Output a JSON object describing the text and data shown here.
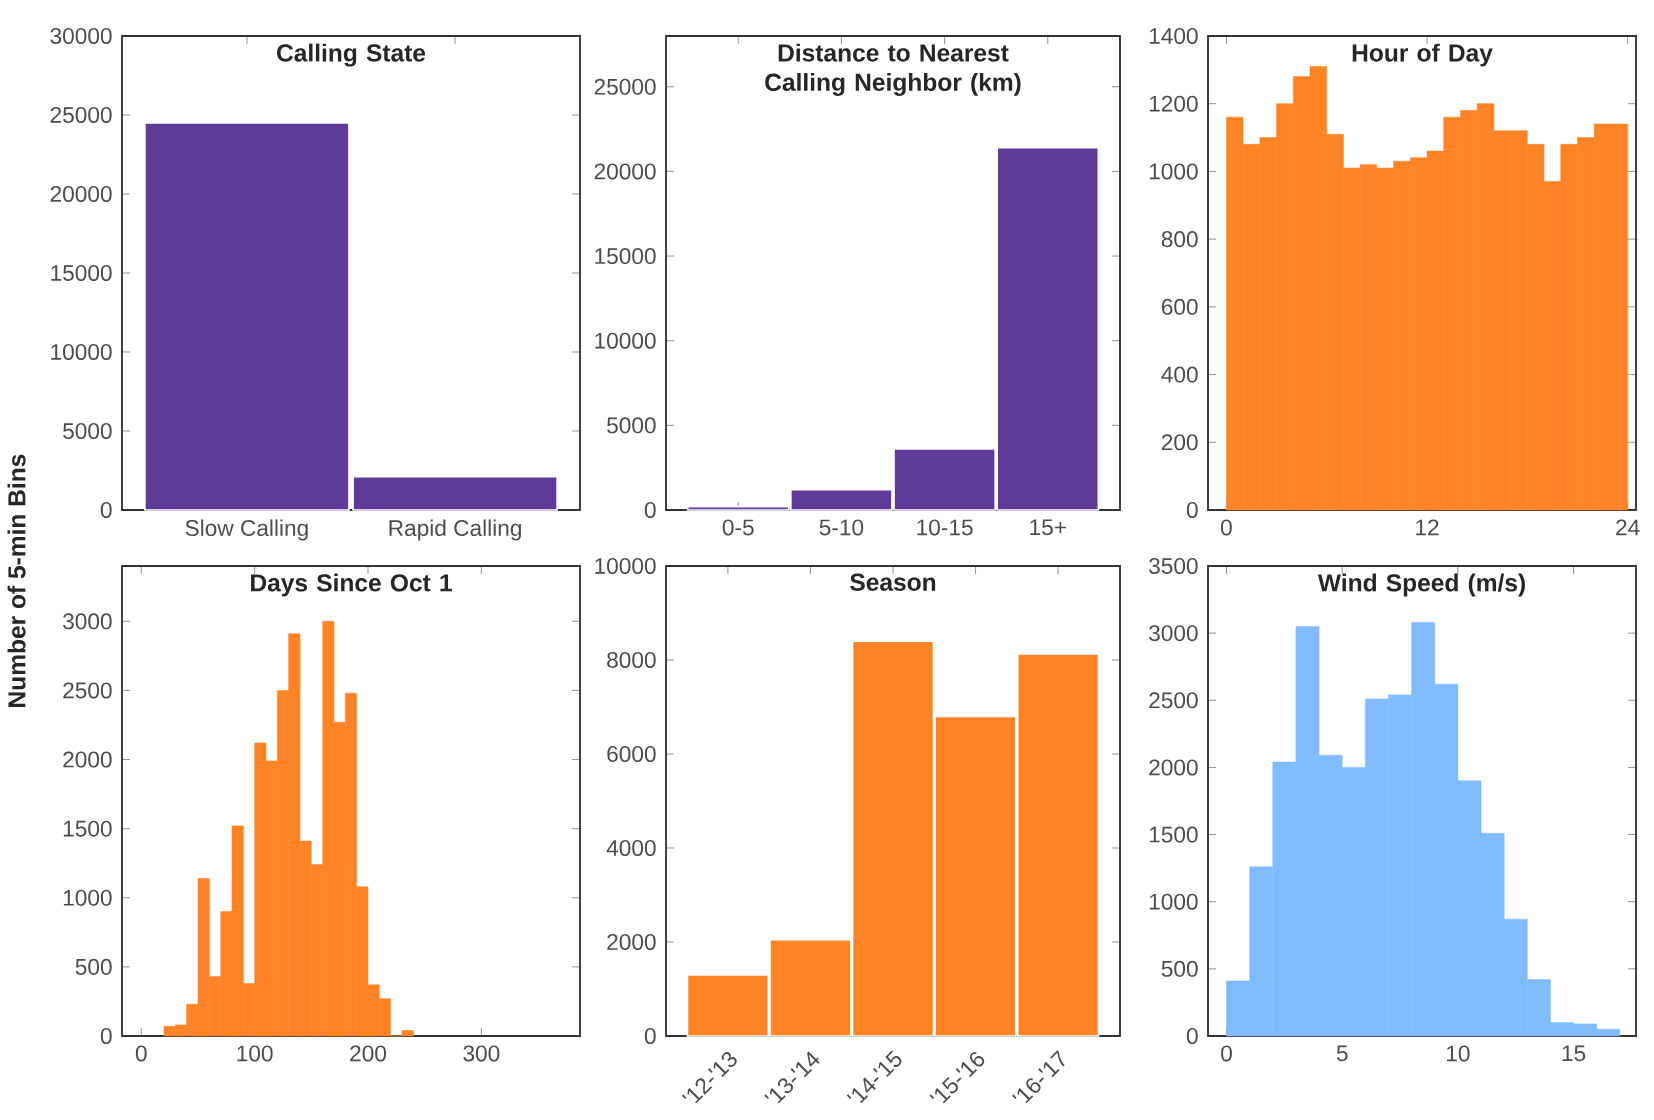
{
  "chart_data": [
    {
      "type": "bar",
      "title": "Calling State",
      "ylabel": "Number of 5-min Bins",
      "categories": [
        "Slow Calling",
        "Rapid Calling"
      ],
      "values": [
        24500,
        2100
      ],
      "color": "#5e3a99",
      "ylim": [
        0,
        30000
      ],
      "yticks": [
        0,
        5000,
        10000,
        15000,
        20000,
        25000,
        30000
      ]
    },
    {
      "type": "bar",
      "title": "Distance to Nearest Calling Neighbor (km)",
      "categories": [
        "0-5",
        "5-10",
        "10-15",
        "15+"
      ],
      "values": [
        200,
        1200,
        3600,
        21400
      ],
      "color": "#5e3a99",
      "ylim": [
        0,
        28000
      ],
      "yticks": [
        0,
        5000,
        10000,
        15000,
        20000,
        25000
      ]
    },
    {
      "type": "histogram",
      "title": "Hour of Day",
      "bins": [
        0,
        1,
        2,
        3,
        4,
        5,
        6,
        7,
        8,
        9,
        10,
        11,
        12,
        13,
        14,
        15,
        16,
        17,
        18,
        19,
        20,
        21,
        22,
        23,
        24
      ],
      "values": [
        1160,
        1080,
        1100,
        1200,
        1280,
        1310,
        1110,
        1010,
        1020,
        1010,
        1030,
        1040,
        1060,
        1160,
        1180,
        1200,
        1120,
        1120,
        1080,
        970,
        1080,
        1100,
        1140,
        1140
      ],
      "color": "#ff8426",
      "xlim": [
        -1.1,
        24.5
      ],
      "ylim": [
        0,
        1400
      ],
      "xticks": [
        0,
        12,
        24
      ],
      "yticks": [
        0,
        200,
        400,
        600,
        800,
        1000,
        1200,
        1400
      ]
    },
    {
      "type": "histogram",
      "title": "Days Since Oct 1",
      "bins": [
        20,
        30,
        40,
        50,
        60,
        70,
        80,
        90,
        100,
        110,
        120,
        130,
        140,
        150,
        160,
        170,
        180,
        190,
        200,
        210,
        220,
        230,
        240
      ],
      "values": [
        70,
        80,
        230,
        1140,
        430,
        900,
        1520,
        380,
        2120,
        1990,
        2500,
        2910,
        1410,
        1240,
        3000,
        2270,
        2480,
        1080,
        370,
        270,
        0,
        40
      ],
      "color": "#ff8426",
      "xlim": [
        -17,
        387
      ],
      "ylim": [
        0,
        3400
      ],
      "xticks": [
        0,
        100,
        200,
        300
      ],
      "yticks": [
        0,
        500,
        1000,
        1500,
        2000,
        2500,
        3000
      ]
    },
    {
      "type": "bar",
      "title": "Season",
      "categories": [
        "'12-'13",
        "'13-'14",
        "'14-'15",
        "'15-'16",
        "'16-'17"
      ],
      "values": [
        1300,
        2050,
        8400,
        6800,
        8130
      ],
      "color": "#ff8426",
      "ylim": [
        0,
        10000
      ],
      "yticks": [
        0,
        2000,
        4000,
        6000,
        8000,
        10000
      ]
    },
    {
      "type": "histogram",
      "title": "Wind Speed (m/s)",
      "bins": [
        0,
        1,
        2,
        3,
        4,
        5,
        6,
        7,
        8,
        9,
        10,
        11,
        12,
        13,
        14,
        15,
        16,
        17
      ],
      "values": [
        410,
        1260,
        2040,
        3050,
        2090,
        2000,
        2510,
        2540,
        3080,
        2620,
        1900,
        1510,
        870,
        420,
        100,
        90,
        50
      ],
      "color": "#80bbff",
      "xlim": [
        -0.8,
        17.7
      ],
      "ylim": [
        0,
        3500
      ],
      "xticks": [
        0,
        5,
        10,
        15
      ],
      "yticks": [
        0,
        500,
        1000,
        1500,
        2000,
        2500,
        3000,
        3500
      ]
    }
  ]
}
